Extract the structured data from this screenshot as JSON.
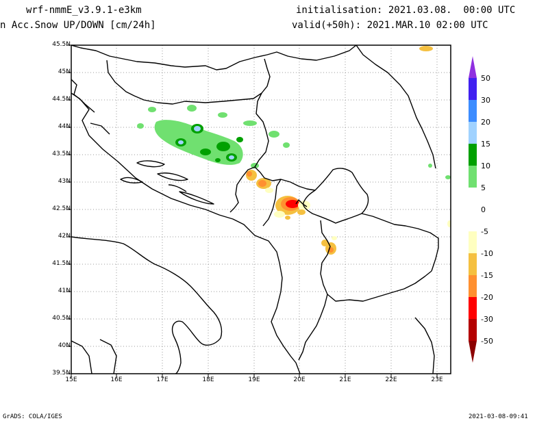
{
  "header": {
    "model": "wrf-nmmE_v3.9.1-e3km",
    "field": "n Acc.Snow UP/DOWN [cm/24h]",
    "init": "initialisation: 2021.03.08.  00:00 UTC",
    "valid": "valid(+50h): 2021.MAR.10 02:00 UTC"
  },
  "map": {
    "lat_labels": [
      "45.5N",
      "45N",
      "44.5N",
      "44N",
      "43.5N",
      "43N",
      "42.5N",
      "42N",
      "41.5N",
      "41N",
      "40.5N",
      "40N",
      "39.5N"
    ],
    "lon_labels": [
      "15E",
      "16E",
      "17E",
      "18E",
      "19E",
      "20E",
      "21E",
      "22E",
      "23E"
    ]
  },
  "colorbar": {
    "labels": [
      "50",
      "30",
      "20",
      "15",
      "10",
      "5",
      "0",
      "-5",
      "-10",
      "-15",
      "-20",
      "-30",
      "-50"
    ],
    "colors": [
      "#4020f0",
      "#3c8cff",
      "#a0d2ff",
      "#00a000",
      "#70e070",
      "#ffffff",
      "#ffffc0",
      "#f5c040",
      "#ff9030",
      "#ff0000",
      "#b40000"
    ],
    "top_arrow_color": "#9030e0",
    "bottom_arrow_color": "#8c0000"
  },
  "footer": {
    "left": "GrADS: COLA/IGES",
    "right": "2021-03-08-09:41"
  }
}
